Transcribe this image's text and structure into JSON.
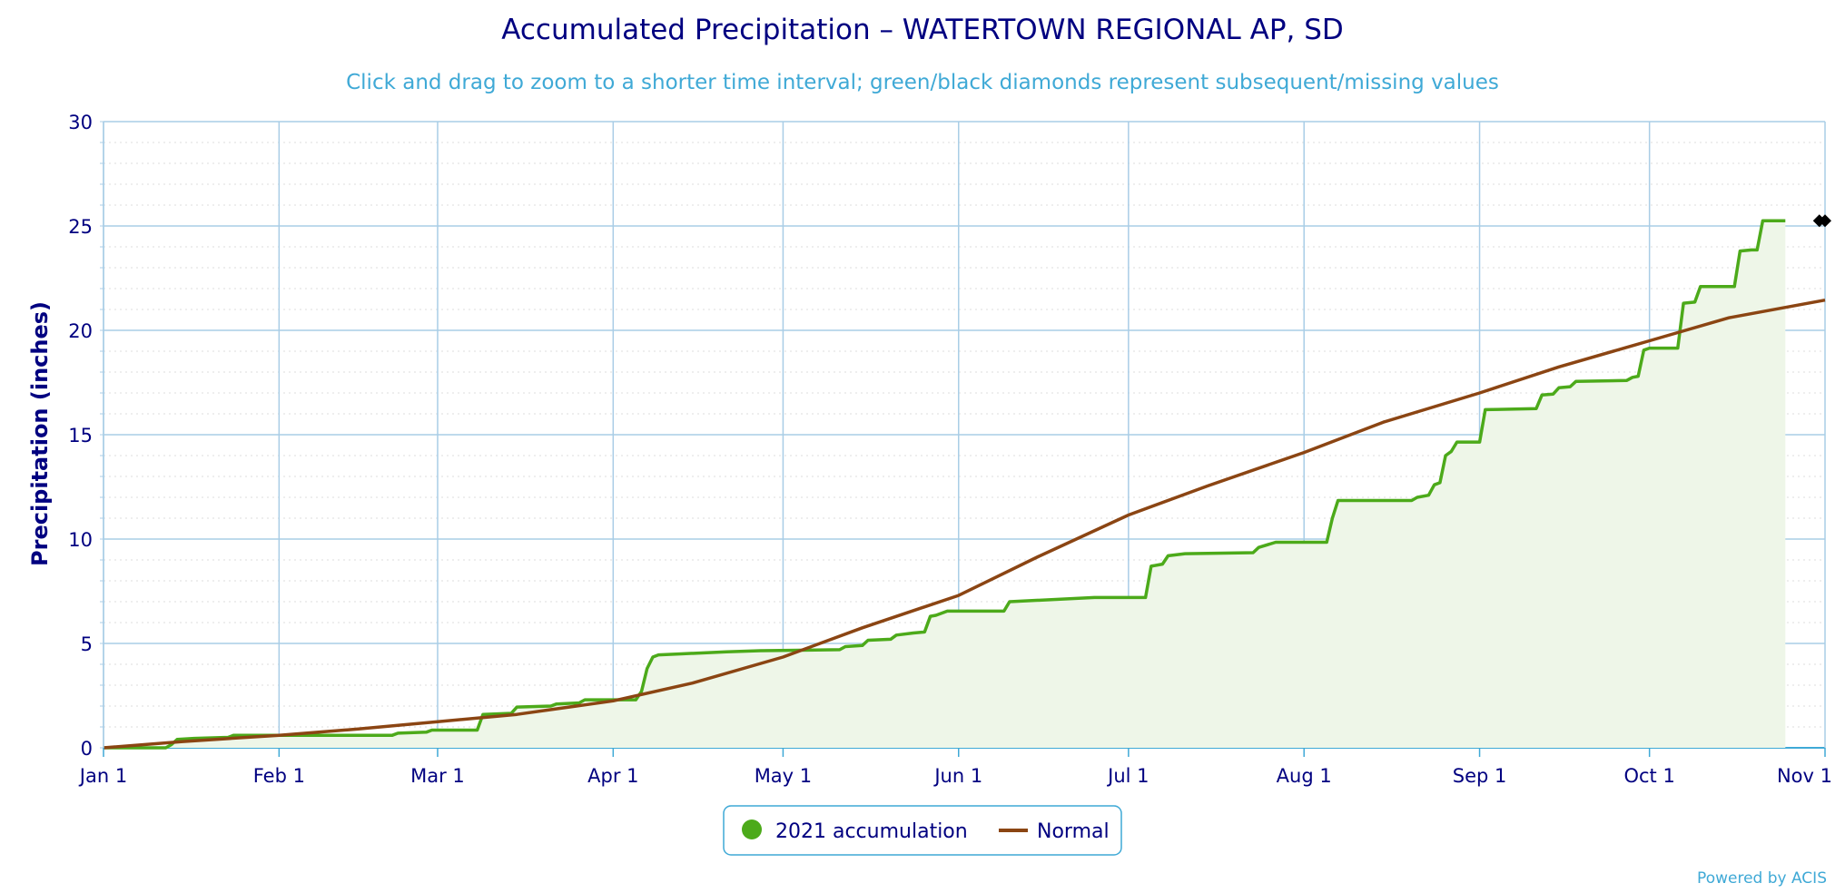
{
  "chart_data": {
    "type": "line",
    "title": "Accumulated Precipitation – WATERTOWN REGIONAL AP, SD",
    "subtitle": "Click and drag to zoom to a shorter time interval; green/black diamonds represent subsequent/missing values",
    "ylabel": "Precipitation (inches)",
    "xlabel": "",
    "ylim": [
      0,
      30
    ],
    "yticks": [
      0,
      5,
      10,
      15,
      20,
      25,
      30
    ],
    "xlim": [
      "2021-01-01",
      "2021-11-01"
    ],
    "xticks": [
      {
        "date": "2021-01-01",
        "label": "Jan 1"
      },
      {
        "date": "2021-02-01",
        "label": "Feb 1"
      },
      {
        "date": "2021-03-01",
        "label": "Mar 1"
      },
      {
        "date": "2021-04-01",
        "label": "Apr 1"
      },
      {
        "date": "2021-05-01",
        "label": "May 1"
      },
      {
        "date": "2021-06-01",
        "label": "Jun 1"
      },
      {
        "date": "2021-07-01",
        "label": "Jul 1"
      },
      {
        "date": "2021-08-01",
        "label": "Aug 1"
      },
      {
        "date": "2021-09-01",
        "label": "Sep 1"
      },
      {
        "date": "2021-10-01",
        "label": "Oct 1"
      },
      {
        "date": "2021-11-01",
        "label": "Nov 1"
      }
    ],
    "grid": true,
    "legend_position": "bottom-center",
    "series": [
      {
        "name": "2021 accumulation",
        "color": "#4caa1a",
        "fill": "#eef6e8",
        "style": "step-area",
        "points": [
          [
            "2021-01-01",
            0.0
          ],
          [
            "2021-01-12",
            0.0
          ],
          [
            "2021-01-13",
            0.15
          ],
          [
            "2021-01-14",
            0.4
          ],
          [
            "2021-01-17",
            0.45
          ],
          [
            "2021-01-23",
            0.5
          ],
          [
            "2021-01-24",
            0.6
          ],
          [
            "2021-02-05",
            0.6
          ],
          [
            "2021-02-21",
            0.6
          ],
          [
            "2021-02-22",
            0.7
          ],
          [
            "2021-02-27",
            0.75
          ],
          [
            "2021-02-28",
            0.85
          ],
          [
            "2021-03-08",
            0.85
          ],
          [
            "2021-03-09",
            1.6
          ],
          [
            "2021-03-14",
            1.65
          ],
          [
            "2021-03-15",
            1.95
          ],
          [
            "2021-03-21",
            2.0
          ],
          [
            "2021-03-22",
            2.1
          ],
          [
            "2021-03-26",
            2.15
          ],
          [
            "2021-03-27",
            2.3
          ],
          [
            "2021-04-05",
            2.3
          ],
          [
            "2021-04-06",
            2.7
          ],
          [
            "2021-04-07",
            3.8
          ],
          [
            "2021-04-08",
            4.35
          ],
          [
            "2021-04-09",
            4.45
          ],
          [
            "2021-04-13",
            4.5
          ],
          [
            "2021-04-21",
            4.6
          ],
          [
            "2021-04-27",
            4.65
          ],
          [
            "2021-05-11",
            4.7
          ],
          [
            "2021-05-12",
            4.85
          ],
          [
            "2021-05-15",
            4.9
          ],
          [
            "2021-05-16",
            5.15
          ],
          [
            "2021-05-20",
            5.2
          ],
          [
            "2021-05-21",
            5.4
          ],
          [
            "2021-05-24",
            5.5
          ],
          [
            "2021-05-26",
            5.55
          ],
          [
            "2021-05-27",
            6.3
          ],
          [
            "2021-05-28",
            6.35
          ],
          [
            "2021-05-30",
            6.55
          ],
          [
            "2021-06-09",
            6.55
          ],
          [
            "2021-06-10",
            7.0
          ],
          [
            "2021-06-25",
            7.2
          ],
          [
            "2021-07-04",
            7.2
          ],
          [
            "2021-07-05",
            8.7
          ],
          [
            "2021-07-07",
            8.8
          ],
          [
            "2021-07-08",
            9.2
          ],
          [
            "2021-07-11",
            9.3
          ],
          [
            "2021-07-23",
            9.35
          ],
          [
            "2021-07-24",
            9.6
          ],
          [
            "2021-07-27",
            9.85
          ],
          [
            "2021-08-05",
            9.85
          ],
          [
            "2021-08-06",
            11.0
          ],
          [
            "2021-08-07",
            11.85
          ],
          [
            "2021-08-20",
            11.85
          ],
          [
            "2021-08-21",
            12.0
          ],
          [
            "2021-08-23",
            12.1
          ],
          [
            "2021-08-24",
            12.6
          ],
          [
            "2021-08-25",
            12.7
          ],
          [
            "2021-08-26",
            14.0
          ],
          [
            "2021-08-27",
            14.2
          ],
          [
            "2021-08-28",
            14.65
          ],
          [
            "2021-09-01",
            14.65
          ],
          [
            "2021-09-02",
            16.2
          ],
          [
            "2021-09-11",
            16.25
          ],
          [
            "2021-09-12",
            16.9
          ],
          [
            "2021-09-14",
            16.95
          ],
          [
            "2021-09-15",
            17.25
          ],
          [
            "2021-09-17",
            17.3
          ],
          [
            "2021-09-18",
            17.55
          ],
          [
            "2021-09-27",
            17.6
          ],
          [
            "2021-09-28",
            17.75
          ],
          [
            "2021-09-29",
            17.8
          ],
          [
            "2021-09-30",
            19.05
          ],
          [
            "2021-10-01",
            19.15
          ],
          [
            "2021-10-06",
            19.15
          ],
          [
            "2021-10-07",
            21.3
          ],
          [
            "2021-10-09",
            21.35
          ],
          [
            "2021-10-10",
            22.1
          ],
          [
            "2021-10-16",
            22.1
          ],
          [
            "2021-10-17",
            23.8
          ],
          [
            "2021-10-19",
            23.85
          ],
          [
            "2021-10-20",
            23.85
          ],
          [
            "2021-10-21",
            25.25
          ],
          [
            "2021-10-25",
            25.25
          ]
        ]
      },
      {
        "name": "Normal",
        "color": "#8b4513",
        "style": "line",
        "points": [
          [
            "2021-01-01",
            0.0
          ],
          [
            "2021-01-15",
            0.3
          ],
          [
            "2021-02-01",
            0.6
          ],
          [
            "2021-02-15",
            0.9
          ],
          [
            "2021-03-01",
            1.25
          ],
          [
            "2021-03-15",
            1.6
          ],
          [
            "2021-04-01",
            2.25
          ],
          [
            "2021-04-15",
            3.1
          ],
          [
            "2021-05-01",
            4.35
          ],
          [
            "2021-05-15",
            5.75
          ],
          [
            "2021-06-01",
            7.3
          ],
          [
            "2021-06-15",
            9.15
          ],
          [
            "2021-07-01",
            11.15
          ],
          [
            "2021-07-15",
            12.55
          ],
          [
            "2021-08-01",
            14.15
          ],
          [
            "2021-08-15",
            15.6
          ],
          [
            "2021-09-01",
            17.0
          ],
          [
            "2021-09-15",
            18.25
          ],
          [
            "2021-10-01",
            19.5
          ],
          [
            "2021-10-15",
            20.6
          ],
          [
            "2021-11-01",
            21.45
          ]
        ]
      }
    ],
    "markers": [
      {
        "date": "2021-10-31",
        "value": 25.25,
        "shape": "diamond",
        "color": "#000000"
      },
      {
        "date": "2021-11-01",
        "value": 25.25,
        "shape": "diamond",
        "color": "#000000"
      }
    ]
  },
  "legend": {
    "items": [
      {
        "label": "2021 accumulation",
        "color": "#4caa1a",
        "symbol": "circle"
      },
      {
        "label": "Normal",
        "color": "#8b4513",
        "symbol": "line"
      }
    ]
  },
  "credit": "Powered by ACIS"
}
